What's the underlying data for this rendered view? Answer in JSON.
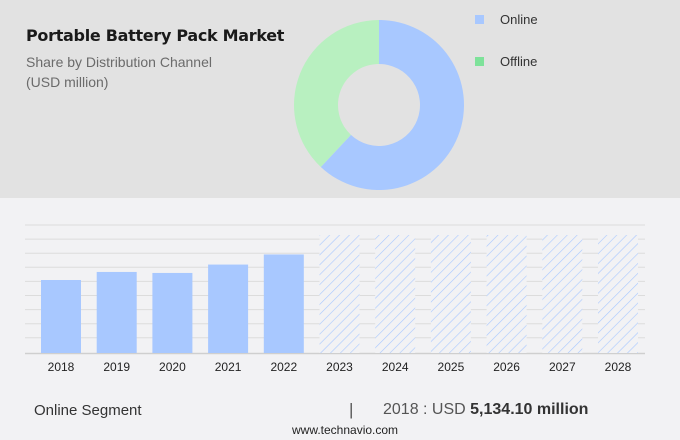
{
  "header": {
    "title": "Portable Battery Pack Market",
    "subtitle_line1": "Share by Distribution Channel",
    "subtitle_line2": "(USD million)"
  },
  "legend": {
    "items": [
      {
        "label": "Online",
        "color": "#a8c8ff"
      },
      {
        "label": "Offline",
        "color": "#7ee29a"
      }
    ]
  },
  "footer": {
    "segment_label": "Online Segment",
    "separator": "|",
    "year_prefix": "2018 : USD ",
    "value": "5,134.10 million",
    "website": "www.technavio.com"
  },
  "chart_data": [
    {
      "type": "pie",
      "subtype": "donut",
      "title": "Portable Battery Pack Market",
      "subtitle": "Share by Distribution Channel (USD million)",
      "categories": [
        "Online",
        "Offline"
      ],
      "values": [
        62,
        38
      ],
      "units": "percent (estimated from slice angles)",
      "colors": [
        "#a8c8ff",
        "#b8f0c0"
      ],
      "legend_position": "right"
    },
    {
      "type": "bar",
      "title": "Online Segment",
      "categories": [
        "2018",
        "2019",
        "2020",
        "2021",
        "2022",
        "2023",
        "2024",
        "2025",
        "2026",
        "2027",
        "2028"
      ],
      "values": [
        5134.1,
        5700,
        5630,
        6220,
        6930,
        null,
        null,
        null,
        null,
        null,
        null
      ],
      "forecast_placeholder_years": [
        "2023",
        "2024",
        "2025",
        "2026",
        "2027",
        "2028"
      ],
      "xlabel": "",
      "ylabel": "USD million",
      "grid": true,
      "annotation": "2018 : USD 5,134.10 million",
      "bar_color": "#a8c8ff"
    }
  ]
}
